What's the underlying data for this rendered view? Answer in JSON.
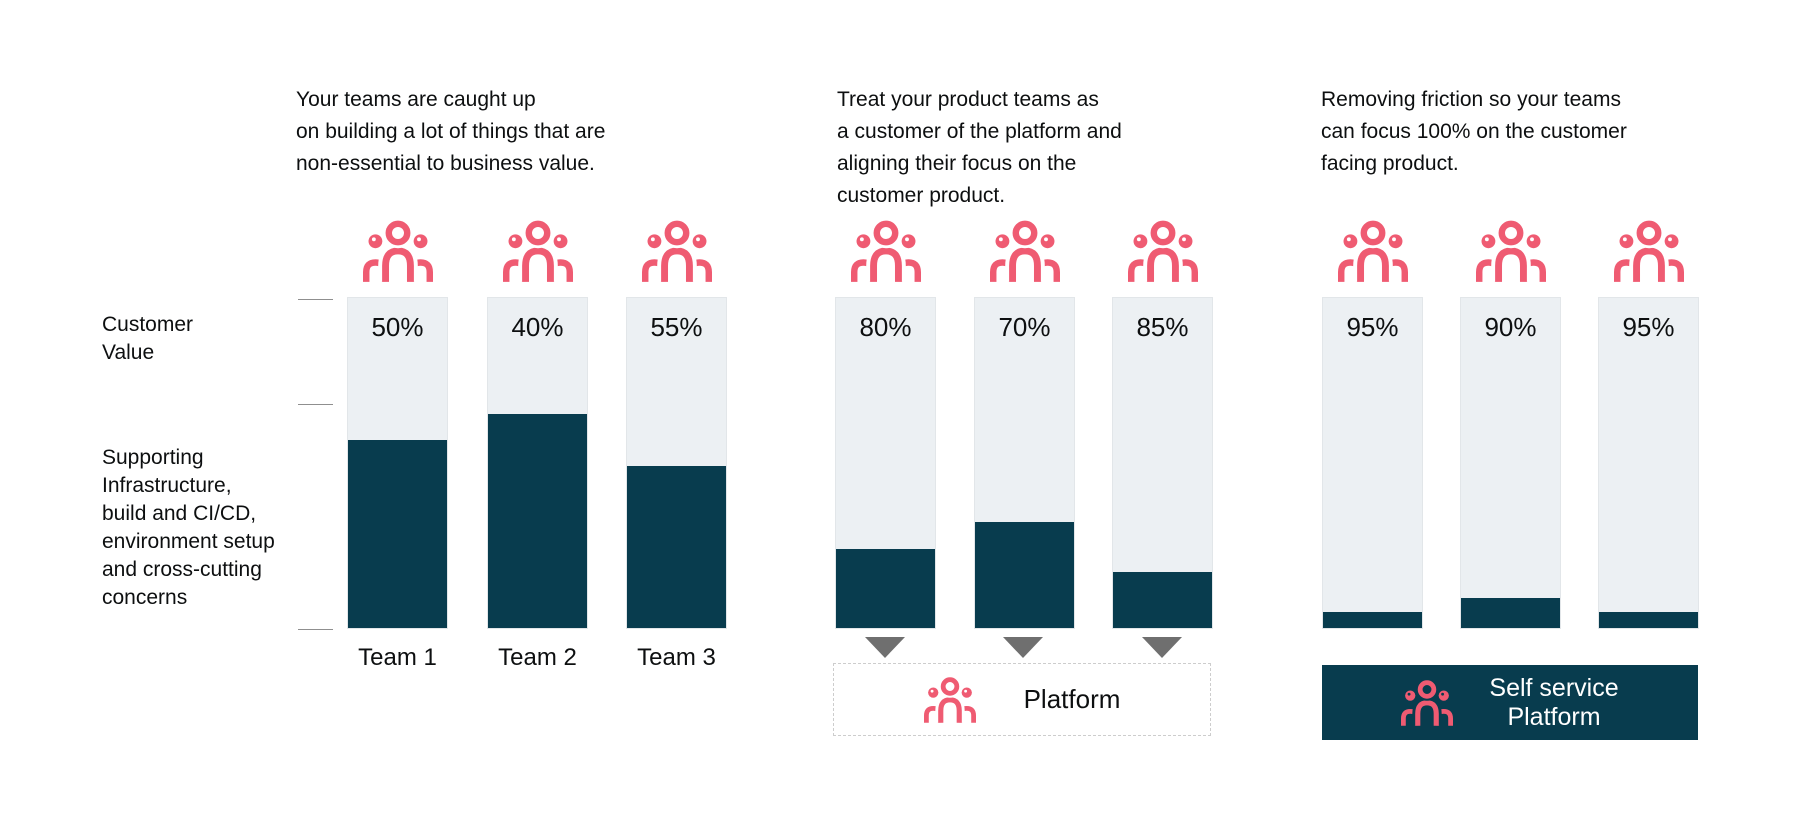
{
  "colors": {
    "dark_teal": "#083c4e",
    "light_bar": "#ecf0f3",
    "pink": "#ef5b72",
    "arrow_gray": "#6f6f6f",
    "tick_gray": "#8f8f8f",
    "dashed_border": "#cdcdcd",
    "text": "#0d0f10",
    "white": "#ffffff"
  },
  "chart_data": {
    "type": "bar",
    "unit": "percent",
    "ylim": [
      0,
      100
    ],
    "grid": false,
    "y_axis_labels": [
      "Customer\nValue",
      "Supporting\nInfrastructure,\nbuild and CI/CD,\nenvironment setup\nand cross-cutting\nconcerns"
    ],
    "panels": [
      {
        "caption": "Your teams are caught up\non building a lot of things that are\nnon-essential to business value.",
        "bars": [
          {
            "name": "Team 1",
            "customer_value_label": "50%",
            "customer_value_pct": 50,
            "infra_fill_pct": 57
          },
          {
            "name": "Team 2",
            "customer_value_label": "40%",
            "customer_value_pct": 40,
            "infra_fill_pct": 65
          },
          {
            "name": "Team 3",
            "customer_value_label": "55%",
            "customer_value_pct": 55,
            "infra_fill_pct": 49
          }
        ]
      },
      {
        "caption": "Treat your product teams as\na customer of the platform and\naligning their focus on the\ncustomer product.",
        "bars": [
          {
            "customer_value_label": "80%",
            "customer_value_pct": 80,
            "infra_fill_pct": 24
          },
          {
            "customer_value_label": "70%",
            "customer_value_pct": 70,
            "infra_fill_pct": 32
          },
          {
            "customer_value_label": "85%",
            "customer_value_pct": 85,
            "infra_fill_pct": 17
          }
        ],
        "footer_label": "Platform"
      },
      {
        "caption": "Removing friction so your teams\ncan focus 100% on the customer\nfacing product.",
        "bars": [
          {
            "customer_value_label": "95%",
            "customer_value_pct": 95,
            "infra_fill_pct": 5
          },
          {
            "customer_value_label": "90%",
            "customer_value_pct": 90,
            "infra_fill_pct": 9
          },
          {
            "customer_value_label": "95%",
            "customer_value_pct": 95,
            "infra_fill_pct": 5
          }
        ],
        "footer_label": "Self service\nPlatform"
      }
    ]
  }
}
